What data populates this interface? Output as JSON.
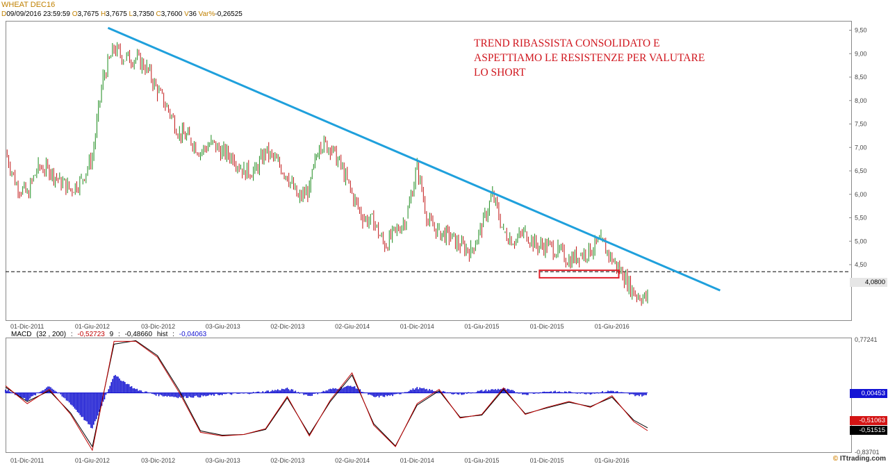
{
  "header": {
    "title": "WHEAT DEC16",
    "fields": [
      {
        "k": "D",
        "v": "09/09/2016"
      },
      {
        "k": "T",
        "v": "23:59:59"
      },
      {
        "k": "O",
        "v": "3,7675"
      },
      {
        "k": "H",
        "v": "3,7675"
      },
      {
        "k": "L",
        "v": "3,7350"
      },
      {
        "k": "C",
        "v": "3,7600"
      },
      {
        "k": "V",
        "v": "36"
      },
      {
        "k": "Var%",
        "v": "-0,26525"
      }
    ]
  },
  "annotation": [
    "TREND RIBASSISTA CONSOLIDATO E",
    "ASPETTIAMO LE RESISTENZE PER VALUTARE",
    "LO SHORT"
  ],
  "macd_header": {
    "name": "MACD",
    "params": "(32 , 200)",
    "macd_value": "-0,52723",
    "signal_label": "9",
    "signal_value": "-0,48660",
    "hist_label": "hist",
    "hist_value": "-0,04063"
  },
  "price_tag": "4,0800",
  "macd_tags": {
    "hist": "0,00453",
    "macd": "-0,51063",
    "signal": "-0,51515"
  },
  "credit": {
    "mark": "©",
    "text": "ITtrading.com"
  },
  "colors": {
    "trendline": "#1fa0dc",
    "up": "#1b8a1b",
    "down": "#c01515",
    "macd_line": "#c00000",
    "signal_line": "#000000",
    "hist": "#1010d0",
    "box": "#e0202a",
    "annotation": "#d0161e"
  },
  "chart_data": [
    {
      "type": "candlestick",
      "title": "WHEAT DEC16",
      "x_tick_labels": [
        "01-Dic-2011",
        "01-Giu-2012",
        "03-Dic-2012",
        "03-Giu-2013",
        "02-Dic-2013",
        "02-Giu-2014",
        "01-Dic-2014",
        "01-Giu-2015",
        "01-Dic-2015",
        "01-Giu-2016"
      ],
      "y_tick_labels": [
        "9,50",
        "9,00",
        "8,50",
        "8,00",
        "7,50",
        "7,00",
        "6,50",
        "6,00",
        "5,50",
        "5,00",
        "4,50"
      ],
      "ylim": [
        3.3,
        9.7
      ],
      "y_ticks": [
        9.5,
        9.0,
        8.5,
        8.0,
        7.5,
        7.0,
        6.5,
        6.0,
        5.5,
        5.0,
        4.5
      ],
      "close_path": [
        {
          "x": "2011-10-01",
          "y": 6.9
        },
        {
          "x": "2011-11-01",
          "y": 6.2
        },
        {
          "x": "2011-12-01",
          "y": 6.0
        },
        {
          "x": "2012-01-01",
          "y": 6.6
        },
        {
          "x": "2012-02-01",
          "y": 6.5
        },
        {
          "x": "2012-03-01",
          "y": 6.3
        },
        {
          "x": "2012-04-01",
          "y": 6.1
        },
        {
          "x": "2012-05-01",
          "y": 6.3
        },
        {
          "x": "2012-06-01",
          "y": 6.8
        },
        {
          "x": "2012-07-01",
          "y": 8.5
        },
        {
          "x": "2012-08-01",
          "y": 9.1
        },
        {
          "x": "2012-09-01",
          "y": 8.9
        },
        {
          "x": "2012-10-01",
          "y": 8.9
        },
        {
          "x": "2012-11-01",
          "y": 8.7
        },
        {
          "x": "2012-12-01",
          "y": 8.2
        },
        {
          "x": "2013-01-01",
          "y": 7.8
        },
        {
          "x": "2013-02-01",
          "y": 7.3
        },
        {
          "x": "2013-03-01",
          "y": 7.2
        },
        {
          "x": "2013-04-01",
          "y": 6.9
        },
        {
          "x": "2013-05-01",
          "y": 7.1
        },
        {
          "x": "2013-06-01",
          "y": 6.9
        },
        {
          "x": "2013-07-01",
          "y": 6.8
        },
        {
          "x": "2013-08-01",
          "y": 6.5
        },
        {
          "x": "2013-09-01",
          "y": 6.5
        },
        {
          "x": "2013-10-01",
          "y": 6.9
        },
        {
          "x": "2013-11-01",
          "y": 6.7
        },
        {
          "x": "2013-12-01",
          "y": 6.4
        },
        {
          "x": "2014-01-01",
          "y": 5.9
        },
        {
          "x": "2014-02-01",
          "y": 6.1
        },
        {
          "x": "2014-03-01",
          "y": 7.1
        },
        {
          "x": "2014-04-01",
          "y": 7.0
        },
        {
          "x": "2014-05-01",
          "y": 6.6
        },
        {
          "x": "2014-06-01",
          "y": 6.0
        },
        {
          "x": "2014-07-01",
          "y": 5.5
        },
        {
          "x": "2014-08-01",
          "y": 5.4
        },
        {
          "x": "2014-09-01",
          "y": 4.9
        },
        {
          "x": "2014-10-01",
          "y": 5.2
        },
        {
          "x": "2014-11-01",
          "y": 5.5
        },
        {
          "x": "2014-12-01",
          "y": 6.6
        },
        {
          "x": "2015-01-01",
          "y": 5.4
        },
        {
          "x": "2015-02-01",
          "y": 5.2
        },
        {
          "x": "2015-03-01",
          "y": 5.1
        },
        {
          "x": "2015-04-01",
          "y": 4.9
        },
        {
          "x": "2015-05-01",
          "y": 4.8
        },
        {
          "x": "2015-06-01",
          "y": 5.3
        },
        {
          "x": "2015-07-01",
          "y": 6.0
        },
        {
          "x": "2015-08-01",
          "y": 5.2
        },
        {
          "x": "2015-09-01",
          "y": 5.0
        },
        {
          "x": "2015-10-01",
          "y": 5.2
        },
        {
          "x": "2015-11-01",
          "y": 4.9
        },
        {
          "x": "2015-12-01",
          "y": 4.9
        },
        {
          "x": "2016-01-01",
          "y": 4.8
        },
        {
          "x": "2016-02-01",
          "y": 4.6
        },
        {
          "x": "2016-03-01",
          "y": 4.7
        },
        {
          "x": "2016-04-01",
          "y": 4.8
        },
        {
          "x": "2016-05-01",
          "y": 5.0
        },
        {
          "x": "2016-06-01",
          "y": 4.6
        },
        {
          "x": "2016-07-01",
          "y": 4.3
        },
        {
          "x": "2016-08-01",
          "y": 3.9
        },
        {
          "x": "2016-09-09",
          "y": 3.76
        }
      ],
      "trendline": {
        "from": {
          "x": "2012-07-15",
          "y": 9.55
        },
        "to": {
          "x": "2017-04-01",
          "y": 3.95
        }
      },
      "support_line": {
        "y": 4.35,
        "style": "dashed"
      },
      "support_box": {
        "x_from": "2015-11-10",
        "x_to": "2016-06-20",
        "y_from": 4.22,
        "y_to": 4.38
      },
      "last_price": 4.08
    },
    {
      "type": "line",
      "title": "MACD (32 , 200)",
      "x_tick_labels": [
        "01-Dic-2011",
        "01-Giu-2012",
        "03-Dic-2012",
        "03-Giu-2013",
        "02-Dic-2013",
        "02-Giu-2014",
        "01-Dic-2014",
        "01-Giu-2015",
        "01-Dic-2015",
        "01-Giu-2016"
      ],
      "y_tick_labels": [
        "0,77241",
        "-0,83701"
      ],
      "ylim": [
        -0.83701,
        0.77241
      ],
      "series": [
        {
          "name": "MACD",
          "type": "line",
          "values": [
            {
              "x": "2011-10-01",
              "y": 0.1
            },
            {
              "x": "2011-12-01",
              "y": -0.15
            },
            {
              "x": "2012-02-01",
              "y": 0.05
            },
            {
              "x": "2012-04-01",
              "y": -0.3
            },
            {
              "x": "2012-06-01",
              "y": -0.8
            },
            {
              "x": "2012-08-01",
              "y": 0.72
            },
            {
              "x": "2012-10-01",
              "y": 0.72
            },
            {
              "x": "2012-12-01",
              "y": 0.5
            },
            {
              "x": "2013-02-01",
              "y": 0.0
            },
            {
              "x": "2013-04-01",
              "y": -0.55
            },
            {
              "x": "2013-06-01",
              "y": -0.6
            },
            {
              "x": "2013-08-01",
              "y": -0.58
            },
            {
              "x": "2013-10-01",
              "y": -0.5
            },
            {
              "x": "2013-12-01",
              "y": -0.05
            },
            {
              "x": "2014-02-01",
              "y": -0.6
            },
            {
              "x": "2014-04-01",
              "y": -0.1
            },
            {
              "x": "2014-06-01",
              "y": 0.28
            },
            {
              "x": "2014-08-01",
              "y": -0.45
            },
            {
              "x": "2014-10-01",
              "y": -0.75
            },
            {
              "x": "2014-12-01",
              "y": -0.15
            },
            {
              "x": "2015-02-01",
              "y": 0.05
            },
            {
              "x": "2015-04-01",
              "y": -0.35
            },
            {
              "x": "2015-06-01",
              "y": -0.3
            },
            {
              "x": "2015-08-01",
              "y": 0.07
            },
            {
              "x": "2015-10-01",
              "y": -0.3
            },
            {
              "x": "2015-12-01",
              "y": -0.2
            },
            {
              "x": "2016-02-01",
              "y": -0.12
            },
            {
              "x": "2016-04-01",
              "y": -0.2
            },
            {
              "x": "2016-06-01",
              "y": -0.04
            },
            {
              "x": "2016-08-01",
              "y": -0.4
            },
            {
              "x": "2016-09-09",
              "y": -0.52723
            }
          ]
        },
        {
          "name": "9",
          "type": "line",
          "values": [
            {
              "x": "2011-10-01",
              "y": 0.08
            },
            {
              "x": "2011-12-01",
              "y": -0.12
            },
            {
              "x": "2012-02-01",
              "y": 0.03
            },
            {
              "x": "2012-04-01",
              "y": -0.28
            },
            {
              "x": "2012-06-01",
              "y": -0.75
            },
            {
              "x": "2012-08-01",
              "y": 0.68
            },
            {
              "x": "2012-10-01",
              "y": 0.73
            },
            {
              "x": "2012-12-01",
              "y": 0.52
            },
            {
              "x": "2013-02-01",
              "y": 0.03
            },
            {
              "x": "2013-04-01",
              "y": -0.53
            },
            {
              "x": "2013-06-01",
              "y": -0.59
            },
            {
              "x": "2013-08-01",
              "y": -0.58
            },
            {
              "x": "2013-10-01",
              "y": -0.51
            },
            {
              "x": "2013-12-01",
              "y": -0.07
            },
            {
              "x": "2014-02-01",
              "y": -0.58
            },
            {
              "x": "2014-04-01",
              "y": -0.12
            },
            {
              "x": "2014-06-01",
              "y": 0.25
            },
            {
              "x": "2014-08-01",
              "y": -0.43
            },
            {
              "x": "2014-10-01",
              "y": -0.74
            },
            {
              "x": "2014-12-01",
              "y": -0.17
            },
            {
              "x": "2015-02-01",
              "y": 0.03
            },
            {
              "x": "2015-04-01",
              "y": -0.34
            },
            {
              "x": "2015-06-01",
              "y": -0.31
            },
            {
              "x": "2015-08-01",
              "y": 0.05
            },
            {
              "x": "2015-10-01",
              "y": -0.29
            },
            {
              "x": "2015-12-01",
              "y": -0.21
            },
            {
              "x": "2016-02-01",
              "y": -0.13
            },
            {
              "x": "2016-04-01",
              "y": -0.19
            },
            {
              "x": "2016-06-01",
              "y": -0.06
            },
            {
              "x": "2016-08-01",
              "y": -0.38
            },
            {
              "x": "2016-09-09",
              "y": -0.4866
            }
          ]
        },
        {
          "name": "hist",
          "type": "bar",
          "values": [
            {
              "x": "2011-10-01",
              "y": 0.05
            },
            {
              "x": "2011-12-01",
              "y": -0.1
            },
            {
              "x": "2012-02-01",
              "y": 0.1
            },
            {
              "x": "2012-04-01",
              "y": -0.15
            },
            {
              "x": "2012-06-01",
              "y": -0.5
            },
            {
              "x": "2012-08-01",
              "y": 0.25
            },
            {
              "x": "2012-10-01",
              "y": 0.05
            },
            {
              "x": "2012-12-01",
              "y": -0.03
            },
            {
              "x": "2013-02-01",
              "y": -0.06
            },
            {
              "x": "2013-04-01",
              "y": -0.05
            },
            {
              "x": "2013-06-01",
              "y": -0.02
            },
            {
              "x": "2013-08-01",
              "y": -0.01
            },
            {
              "x": "2013-10-01",
              "y": 0.02
            },
            {
              "x": "2013-12-01",
              "y": 0.06
            },
            {
              "x": "2014-02-01",
              "y": -0.04
            },
            {
              "x": "2014-04-01",
              "y": 0.05
            },
            {
              "x": "2014-06-01",
              "y": 0.1
            },
            {
              "x": "2014-08-01",
              "y": -0.06
            },
            {
              "x": "2014-10-01",
              "y": -0.03
            },
            {
              "x": "2014-12-01",
              "y": 0.07
            },
            {
              "x": "2015-02-01",
              "y": 0.02
            },
            {
              "x": "2015-04-01",
              "y": -0.02
            },
            {
              "x": "2015-06-01",
              "y": 0.03
            },
            {
              "x": "2015-08-01",
              "y": 0.06
            },
            {
              "x": "2015-10-01",
              "y": -0.02
            },
            {
              "x": "2015-12-01",
              "y": 0.02
            },
            {
              "x": "2016-02-01",
              "y": 0.01
            },
            {
              "x": "2016-04-01",
              "y": -0.01
            },
            {
              "x": "2016-06-01",
              "y": 0.03
            },
            {
              "x": "2016-08-01",
              "y": -0.03
            },
            {
              "x": "2016-09-09",
              "y": -0.04063
            }
          ]
        }
      ]
    }
  ]
}
